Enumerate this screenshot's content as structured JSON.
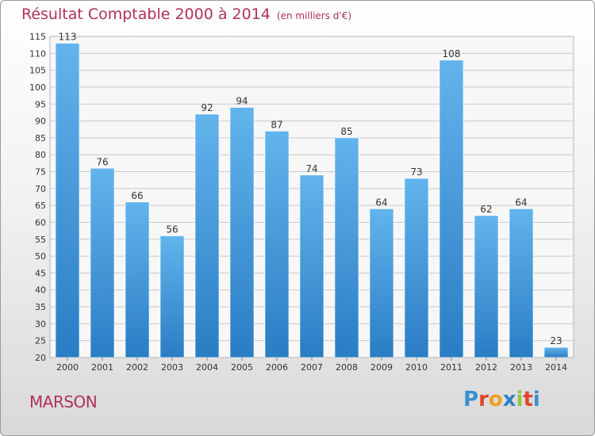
{
  "title": "Résultat Comptable 2000 à 2014",
  "subtitle": "(en milliers d'€)",
  "place_name": "MARSON",
  "logo": {
    "text": "Proxiti",
    "letters": [
      {
        "ch": "P",
        "color": "#3a8fd0"
      },
      {
        "ch": "r",
        "color": "#e0462e"
      },
      {
        "ch": "o",
        "color": "#f0a020"
      },
      {
        "ch": "x",
        "color": "#2f7fc8"
      },
      {
        "ch": "i",
        "color": "#8cc63f"
      },
      {
        "ch": "t",
        "color": "#e0462e"
      },
      {
        "ch": "i",
        "color": "#3a8fd0"
      }
    ]
  },
  "colors": {
    "accent_text": "#b0315a",
    "bar_top": "#62b4ec",
    "bar_bottom": "#2a7dc4",
    "grid": "#c9c9c9"
  },
  "chart_data": {
    "type": "bar",
    "title": "Résultat Comptable 2000 à 2014",
    "subtitle": "(en milliers d'€)",
    "xlabel": "",
    "ylabel": "",
    "categories": [
      "2000",
      "2001",
      "2002",
      "2003",
      "2004",
      "2005",
      "2006",
      "2007",
      "2008",
      "2009",
      "2010",
      "2011",
      "2012",
      "2013",
      "2014"
    ],
    "values": [
      113,
      76,
      66,
      56,
      92,
      94,
      87,
      74,
      85,
      64,
      73,
      108,
      62,
      64,
      23
    ],
    "ylim": [
      20,
      115
    ],
    "yticks": [
      20,
      25,
      30,
      35,
      40,
      45,
      50,
      55,
      60,
      65,
      70,
      75,
      80,
      85,
      90,
      95,
      100,
      105,
      110,
      115
    ],
    "grid": true,
    "data_labels": true
  }
}
